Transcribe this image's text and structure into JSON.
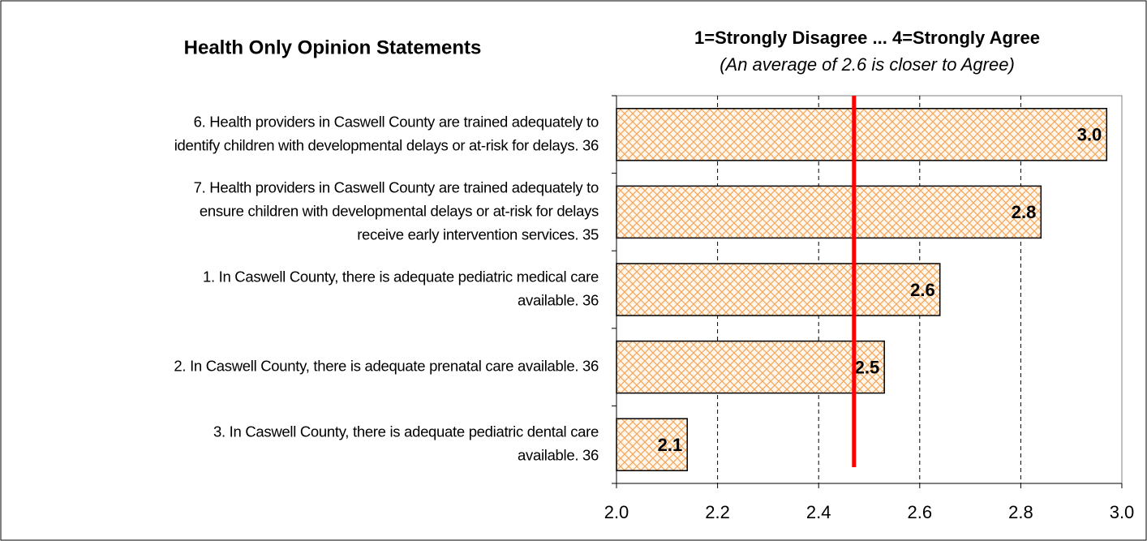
{
  "chart_data": {
    "type": "bar",
    "orientation": "horizontal",
    "title": "Health Only Opinion Statements",
    "subtitle": "1=Strongly Disagree ... 4=Strongly Agree",
    "annotation": "(An average of 2.6 is closer to Agree)",
    "categories": [
      "6. Health providers in Caswell County are trained adequately to\nidentify children with developmental delays or at-risk for delays. 36",
      "7. Health providers in Caswell County are trained adequately to\nensure children with developmental delays or at-risk for delays\nreceive early intervention services. 35",
      "1. In Caswell County, there is adequate pediatric medical care\navailable. 36",
      "2. In Caswell County, there is adequate prenatal care available. 36",
      "3. In Caswell County, there is adequate pediatric dental care\navailable. 36"
    ],
    "values": [
      2.97,
      2.84,
      2.64,
      2.53,
      2.14
    ],
    "value_labels": [
      "3.0",
      "2.8",
      "2.6",
      "2.5",
      "2.1"
    ],
    "color": "#f5a65b",
    "reference_line": {
      "value": 2.47,
      "color": "#ff0000"
    },
    "xlim": [
      2.0,
      3.0
    ],
    "xticks": [
      {
        "value": 2.0,
        "label": "2.0"
      },
      2.2,
      2.4,
      2.6,
      2.8,
      {
        "value": 3.0,
        "label": "3.0"
      }
    ],
    "grid": true
  }
}
